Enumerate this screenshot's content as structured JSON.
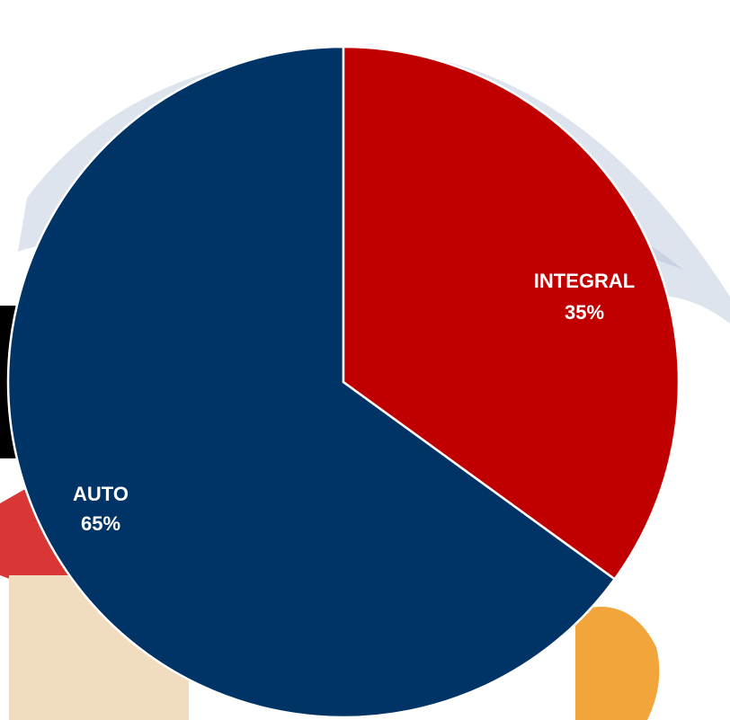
{
  "chart_data": {
    "type": "pie",
    "title": "",
    "start_angle_deg": 0,
    "direction": "clockwise",
    "slices": [
      {
        "label": "INTEGRAL",
        "percent_label": "35%",
        "value": 35,
        "color": "#c00000"
      },
      {
        "label": "AUTO",
        "percent_label": "65%",
        "value": 65,
        "color": "#003366"
      }
    ]
  },
  "colors": {
    "umbrella": "#dde4ee",
    "band": "#000000"
  }
}
